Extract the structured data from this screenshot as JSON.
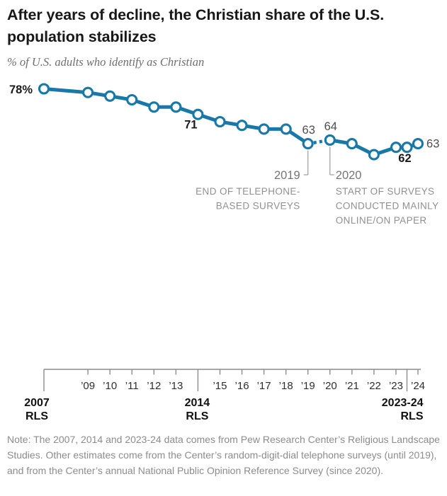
{
  "header": {
    "title": "After years of decline, the Christian share of the U.S. population stabilizes",
    "subtitle": "% of U.S. adults who identify as Christian"
  },
  "chart_data": {
    "type": "line",
    "title": "After years of decline, the Christian share of the U.S. population stabilizes",
    "subtitle": "% of U.S. adults who identify as Christian",
    "unit": "% of U.S. adults",
    "line_color": "#1878a8",
    "marker_style": "open-circle",
    "value_range": [
      60,
      78
    ],
    "series": [
      {
        "name": "% of U.S. adults who identify as Christian",
        "points": [
          {
            "year": 2007,
            "value": 78,
            "label": "78%",
            "label_bold": true,
            "label_pos": "left"
          },
          {
            "year": 2009,
            "value": 77
          },
          {
            "year": 2010,
            "value": 76
          },
          {
            "year": 2011,
            "value": 75
          },
          {
            "year": 2012,
            "value": 73
          },
          {
            "year": 2013,
            "value": 73
          },
          {
            "year": 2014,
            "value": 71,
            "label": "71",
            "label_bold": true,
            "label_pos": "below-left"
          },
          {
            "year": 2015,
            "value": 69
          },
          {
            "year": 2016,
            "value": 68
          },
          {
            "year": 2017,
            "value": 67
          },
          {
            "year": 2018,
            "value": 67
          },
          {
            "year": 2019,
            "value": 63,
            "label": "63",
            "label_bold": false,
            "label_pos": "above"
          },
          {
            "year": 2020,
            "value": 64,
            "label": "64",
            "label_bold": false,
            "label_pos": "above"
          },
          {
            "year": 2021,
            "value": 63
          },
          {
            "year": 2022,
            "value": 60
          },
          {
            "year": 2023,
            "value": 62
          },
          {
            "year": 2023.5,
            "value": 62,
            "label": "62",
            "label_bold": true,
            "label_pos": "below"
          },
          {
            "year": 2024,
            "value": 63,
            "label": "63",
            "label_bold": false,
            "label_pos": "right"
          }
        ]
      }
    ],
    "dashed_segment": {
      "from_year": 2019,
      "to_year": 2020
    },
    "annotations": [
      {
        "year": 2019,
        "title": "2019",
        "lines": [
          "END OF TELEPHONE-",
          "BASED SURVEYS"
        ],
        "align": "right"
      },
      {
        "year": 2020,
        "title": "2020",
        "lines": [
          "START OF SURVEYS",
          "CONDUCTED MAINLY",
          "ONLINE/ON PAPER"
        ],
        "align": "left"
      }
    ],
    "x_axis": {
      "minor_ticks": [
        {
          "year": 2009,
          "label": "’09"
        },
        {
          "year": 2010,
          "label": "’10"
        },
        {
          "year": 2011,
          "label": "’11"
        },
        {
          "year": 2012,
          "label": "’12"
        },
        {
          "year": 2013,
          "label": "’13"
        },
        {
          "year": 2015,
          "label": "’15"
        },
        {
          "year": 2016,
          "label": "’16"
        },
        {
          "year": 2017,
          "label": "’17"
        },
        {
          "year": 2018,
          "label": "’18"
        },
        {
          "year": 2019,
          "label": "’19"
        },
        {
          "year": 2020,
          "label": "’20"
        },
        {
          "year": 2021,
          "label": "’21"
        },
        {
          "year": 2022,
          "label": "’22"
        },
        {
          "year": 2023,
          "label": "’23"
        },
        {
          "year": 2024,
          "label": "’24"
        }
      ],
      "major_ticks": [
        {
          "year": 2007,
          "line1": "2007",
          "line2": "RLS"
        },
        {
          "year": 2014,
          "line1": "2014",
          "line2": "RLS"
        },
        {
          "year": 2023.5,
          "line1": "2023-24",
          "line2": "RLS"
        }
      ]
    }
  },
  "note": "Note: The 2007, 2014 and 2023-24 data comes from Pew Research Center’s Religious Landscape Studies. Other estimates come from the Center’s random-digit-dial telephone surveys (until 2019), and from the Center’s annual National Public Opinion Reference Survey (since 2020)."
}
